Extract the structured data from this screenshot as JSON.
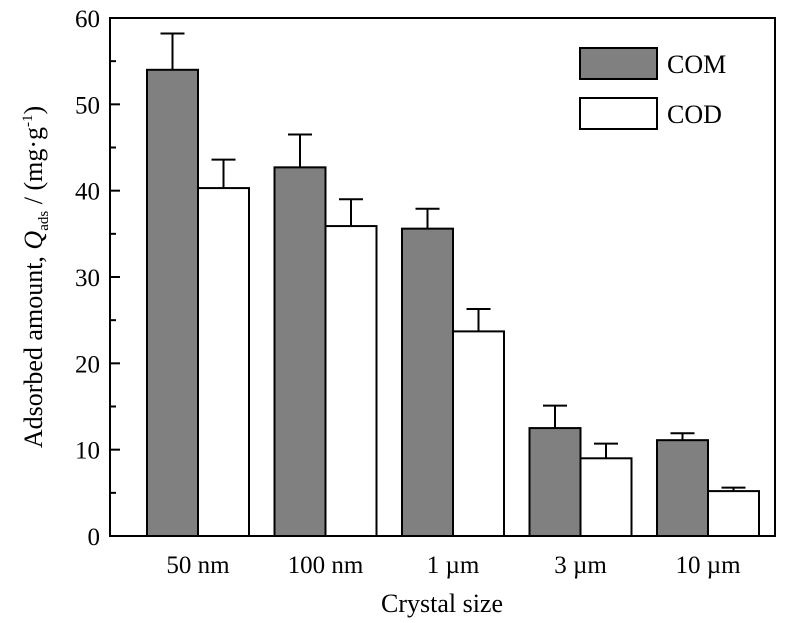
{
  "chart_data": {
    "type": "bar",
    "categories": [
      "50 nm",
      "100 nm",
      "1 µm",
      "3 µm",
      "10 µm"
    ],
    "series": [
      {
        "name": "COM",
        "values": [
          54.0,
          42.7,
          35.6,
          12.5,
          11.1
        ],
        "errors": [
          4.2,
          3.8,
          2.3,
          2.6,
          0.8
        ],
        "color": "#808080"
      },
      {
        "name": "COD",
        "values": [
          40.3,
          35.9,
          23.7,
          9.0,
          5.2
        ],
        "errors": [
          3.3,
          3.1,
          2.6,
          1.7,
          0.4
        ],
        "color": "#ffffff"
      }
    ],
    "xlabel": "Crystal size",
    "ylabel": {
      "prefix": "Adsorbed amount, ",
      "symbol": "Q",
      "subscript": "ads",
      "unit_open": " / (mg·g",
      "superscript": "-1",
      "unit_close": ")"
    },
    "ylim": [
      0,
      60
    ],
    "yticks": [
      0,
      10,
      20,
      30,
      40,
      50,
      60
    ],
    "grid": false,
    "legend_position": "top-right"
  }
}
